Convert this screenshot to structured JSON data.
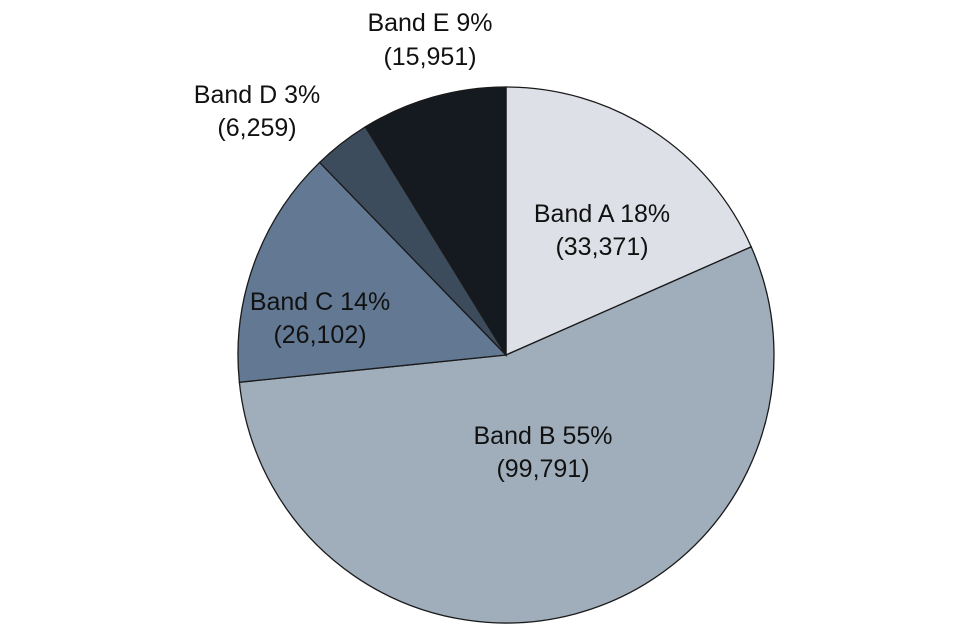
{
  "chart_data": {
    "type": "pie",
    "title": "",
    "slices": [
      {
        "name": "Band A",
        "value": 33371,
        "percent_label": "18%",
        "count_label": "(33,371)",
        "color": "#dde1e7"
      },
      {
        "name": "Band B",
        "value": 99791,
        "percent_label": "55%",
        "count_label": "(99,791)",
        "color": "#a0aebc"
      },
      {
        "name": "Band C",
        "value": 26102,
        "percent_label": "14%",
        "count_label": "(26,102)",
        "color": "#627893"
      },
      {
        "name": "Band D",
        "value": 6259,
        "percent_label": "3%",
        "count_label": "(6,259)",
        "color": "#3d4c5c"
      },
      {
        "name": "Band E",
        "value": 15951,
        "percent_label": "9%",
        "count_label": "(15,951)",
        "color": "#141a1f"
      }
    ],
    "start": "12 o'clock",
    "direction": "clockwise",
    "legend": "none"
  }
}
